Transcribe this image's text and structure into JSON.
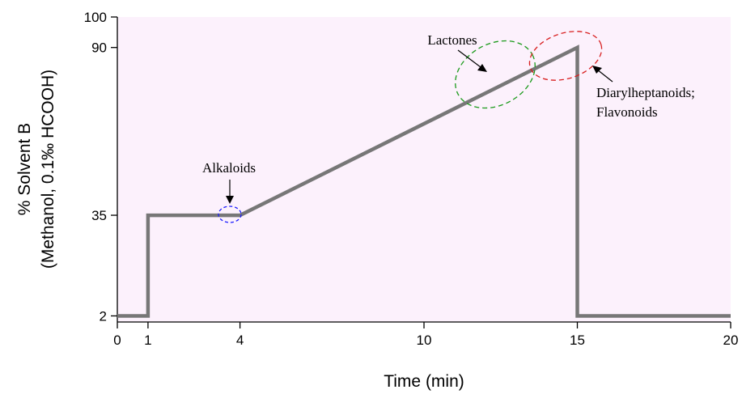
{
  "chart_data": {
    "type": "line",
    "xlabel": "Time (min)",
    "ylabel_line1": "% Solvent B",
    "ylabel_line2": "(Methanol, 0.1‰ HCOOH)",
    "xlim": [
      0,
      20
    ],
    "ylim": [
      0,
      100
    ],
    "x_ticks": [
      0,
      1,
      4,
      10,
      15,
      20
    ],
    "y_ticks": [
      2,
      35,
      90,
      100
    ],
    "series": [
      {
        "x": [
          0,
          1,
          1,
          4,
          15,
          15,
          20
        ],
        "y": [
          2,
          2,
          35,
          35,
          90,
          2,
          2
        ],
        "color": "#777777"
      }
    ],
    "background_color": "#fcf1fc",
    "annotations": [
      {
        "label": "Alkaloids",
        "x": 3.75,
        "y": 35,
        "color": "#1a1aff"
      },
      {
        "label": "Lactones",
        "x": 12.4,
        "y": 79,
        "color": "#1a9a1a"
      },
      {
        "label": "Diarylheptanoids;",
        "label2": "Flavonoids",
        "x": 14.55,
        "y": 90,
        "color": "#d81f1f"
      }
    ]
  }
}
